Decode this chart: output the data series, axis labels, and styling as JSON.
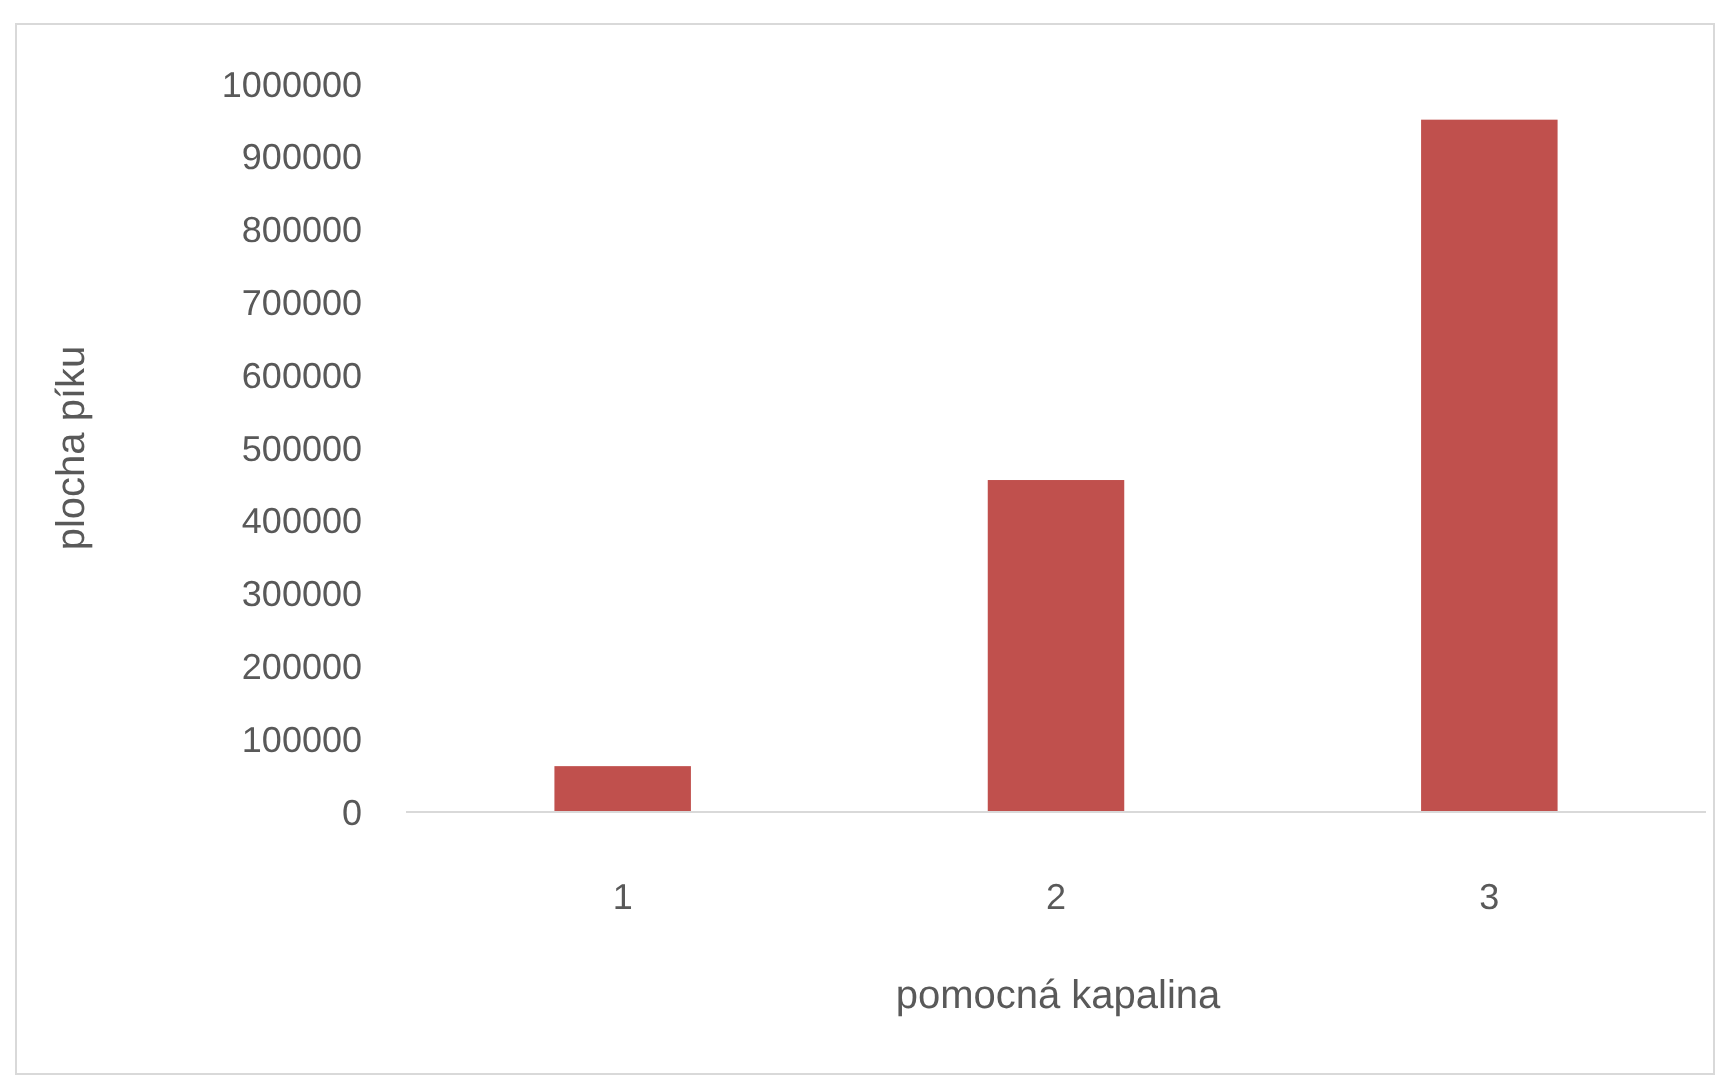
{
  "chart_data": {
    "type": "bar",
    "xlabel": "pomocná kapalina",
    "ylabel": "plocha píku",
    "categories": [
      "1",
      "2",
      "3"
    ],
    "values": [
      63000,
      456000,
      951000
    ],
    "color": "#c0504d",
    "ylim": [
      0,
      1000000
    ],
    "yticks": [
      0,
      100000,
      200000,
      300000,
      400000,
      500000,
      600000,
      700000,
      800000,
      900000,
      1000000
    ],
    "grid": false
  }
}
